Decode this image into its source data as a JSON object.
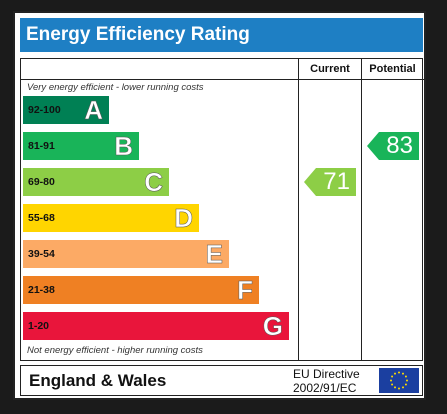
{
  "title": "Energy Efficiency Rating",
  "columns": {
    "current": "Current",
    "potential": "Potential"
  },
  "notes": {
    "top": "Very energy efficient - lower running costs",
    "bottom": "Not energy efficient - higher running costs"
  },
  "bands": [
    {
      "range": "92-100",
      "letter": "A",
      "color": "#008054"
    },
    {
      "range": "81-91",
      "letter": "B",
      "color": "#19b459"
    },
    {
      "range": "69-80",
      "letter": "C",
      "color": "#8dce46"
    },
    {
      "range": "55-68",
      "letter": "D",
      "color": "#ffd500"
    },
    {
      "range": "39-54",
      "letter": "E",
      "color": "#fcaa65"
    },
    {
      "range": "21-38",
      "letter": "F",
      "color": "#ef8023"
    },
    {
      "range": "1-20",
      "letter": "G",
      "color": "#e9153b"
    }
  ],
  "ratings": {
    "current": {
      "value": "71",
      "color": "#8dce46"
    },
    "potential": {
      "value": "83",
      "color": "#19b459"
    }
  },
  "footer": {
    "region": "England & Wales",
    "directive_line1": "EU Directive",
    "directive_line2": "2002/91/EC"
  }
}
